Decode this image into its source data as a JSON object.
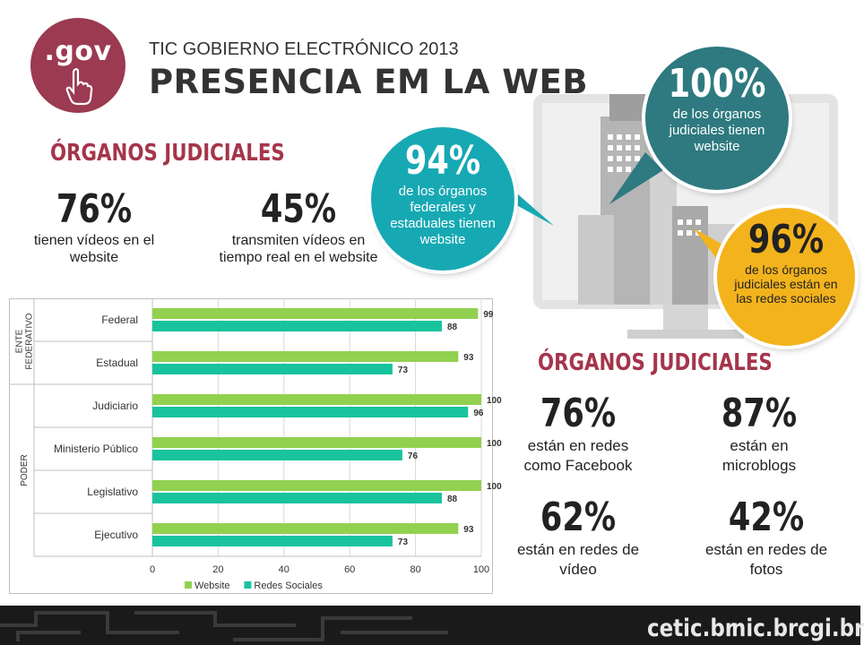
{
  "header": {
    "logo_text": ".gov",
    "subtitle": "TIC GOBIERNO ELECTRÓNICO 2013",
    "title": "PRESENCIA EM LA WEB"
  },
  "left_section": {
    "heading": "ÓRGANOS JUDICIALES",
    "stats": [
      {
        "value": "76%",
        "label": "tienen vídeos en el website"
      },
      {
        "value": "45%",
        "label": "transmiten vídeos en tiempo real en el website"
      }
    ]
  },
  "bubbles": {
    "federal": {
      "value": "94%",
      "label": "de los órganos federales y estaduales tienen website",
      "color": "#17a9b3"
    },
    "judicial_web": {
      "value": "100%",
      "label": "de los órganos judiciales tienen website",
      "color": "#2e7a80"
    },
    "social": {
      "value": "96%",
      "label": "de los órganos judiciales están en las redes sociales",
      "color": "#f3b31d"
    }
  },
  "right_section": {
    "heading": "ÓRGANOS JUDICIALES",
    "stats": [
      {
        "value": "76%",
        "label": "están en redes como Facebook"
      },
      {
        "value": "87%",
        "label": "están en microblogs"
      },
      {
        "value": "62%",
        "label": "están en redes de vídeo"
      },
      {
        "value": "42%",
        "label": "están en redes de fotos"
      }
    ]
  },
  "chart_data": {
    "type": "bar",
    "orientation": "horizontal",
    "categories": [
      "Federal",
      "Estadual",
      "Judiciario",
      "Ministerio Público",
      "Legislativo",
      "Ejecutivo"
    ],
    "groups": [
      {
        "label": "ENTE FEDERATIVO",
        "categories": [
          "Federal",
          "Estadual"
        ]
      },
      {
        "label": "PODER",
        "categories": [
          "Judiciario",
          "Ministerio Público",
          "Legislativo",
          "Ejecutivo"
        ]
      }
    ],
    "series": [
      {
        "name": "Website",
        "values": [
          99,
          93,
          100,
          100,
          100,
          93
        ],
        "color": "#92d050"
      },
      {
        "name": "Redes Sociales",
        "values": [
          88,
          73,
          96,
          76,
          88,
          73
        ],
        "color": "#19c39d"
      }
    ],
    "xlim": [
      0,
      100
    ],
    "xticks": [
      "0",
      "20",
      "40",
      "60",
      "80",
      "100"
    ],
    "grid": true,
    "legend": "bottom"
  },
  "footer": {
    "logos": [
      {
        "text": "cetic.br",
        "color": "#e8e8e8"
      },
      {
        "text": "nic.br",
        "color": "#e8e8e8"
      },
      {
        "text": "cgi.br",
        "color": "#e8e8e8"
      }
    ]
  }
}
